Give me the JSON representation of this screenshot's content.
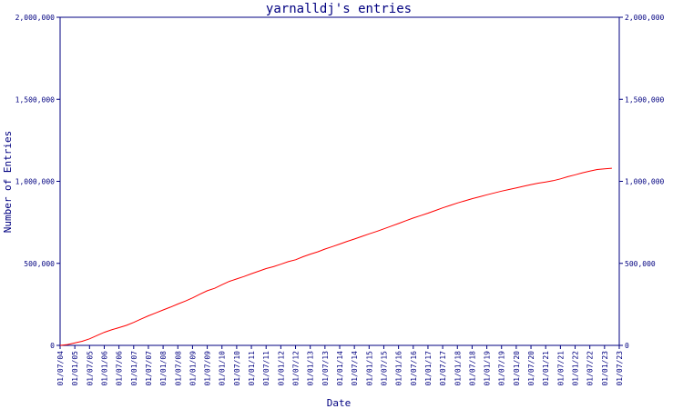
{
  "chart_data": {
    "type": "line",
    "title": "yarnalldj's entries",
    "xlabel": "Date",
    "ylabel": "Number of Entries",
    "ylim": [
      0,
      2000000
    ],
    "y_ticks": [
      "0",
      "500,000",
      "1,000,000",
      "1,500,000",
      "2,000,000"
    ],
    "y_tick_values": [
      0,
      500000,
      1000000,
      1500000,
      2000000
    ],
    "x_tick_labels": [
      "01/07/04",
      "01/01/05",
      "01/07/05",
      "01/01/06",
      "01/07/06",
      "01/01/07",
      "01/07/07",
      "01/01/08",
      "01/07/08",
      "01/01/09",
      "01/07/09",
      "01/01/10",
      "01/07/10",
      "01/01/11",
      "01/07/11",
      "01/01/12",
      "01/07/12",
      "01/01/13",
      "01/07/13",
      "01/01/14",
      "01/07/14",
      "01/01/15",
      "01/07/15",
      "01/01/16",
      "01/07/16",
      "01/01/17",
      "01/07/17",
      "01/01/18",
      "01/07/18",
      "01/01/19",
      "01/07/19",
      "01/01/20",
      "01/07/20",
      "01/01/21",
      "01/07/21",
      "01/01/22",
      "01/07/22",
      "01/01/23",
      "01/07/23"
    ],
    "grid": false,
    "legend": "none",
    "colors": {
      "axis": "#000080",
      "line": "#ff0000",
      "background": "#ffffff"
    },
    "series": [
      {
        "x": [
          "2004-07-01",
          "2004-10-01",
          "2005-01-01",
          "2005-04-01",
          "2005-07-01",
          "2005-10-01",
          "2006-01-01",
          "2006-04-01",
          "2006-07-01",
          "2006-10-01",
          "2007-01-01",
          "2007-04-01",
          "2007-07-01",
          "2007-10-01",
          "2008-01-01",
          "2008-04-01",
          "2008-07-01",
          "2008-10-01",
          "2009-01-01",
          "2009-04-01",
          "2009-07-01",
          "2009-10-01",
          "2010-01-01",
          "2010-04-01",
          "2010-07-01",
          "2010-10-01",
          "2011-01-01",
          "2011-04-01",
          "2011-07-01",
          "2011-10-01",
          "2012-01-01",
          "2012-04-01",
          "2012-07-01",
          "2012-10-01",
          "2013-01-01",
          "2013-04-01",
          "2013-07-01",
          "2013-10-01",
          "2014-01-01",
          "2014-04-01",
          "2014-07-01",
          "2014-10-01",
          "2015-01-01",
          "2015-04-01",
          "2015-07-01",
          "2015-10-01",
          "2016-01-01",
          "2016-04-01",
          "2016-07-01",
          "2016-10-01",
          "2017-01-01",
          "2017-04-01",
          "2017-07-01",
          "2017-10-01",
          "2018-01-01",
          "2018-04-01",
          "2018-07-01",
          "2018-10-01",
          "2019-01-01",
          "2019-04-01",
          "2019-07-01",
          "2019-10-01",
          "2020-01-01",
          "2020-04-01",
          "2020-07-01",
          "2020-10-01",
          "2021-01-01",
          "2021-04-01",
          "2021-07-01",
          "2021-10-01",
          "2022-01-01",
          "2022-04-01",
          "2022-07-01",
          "2022-10-01",
          "2023-01-01",
          "2023-04-01"
        ],
        "values": [
          0,
          5000,
          15000,
          25000,
          40000,
          60000,
          80000,
          95000,
          108000,
          122000,
          140000,
          160000,
          180000,
          198000,
          216000,
          233000,
          252000,
          270000,
          290000,
          312000,
          333000,
          348000,
          370000,
          390000,
          405000,
          420000,
          437000,
          452000,
          468000,
          480000,
          495000,
          510000,
          522000,
          540000,
          556000,
          570000,
          587000,
          602000,
          618000,
          634000,
          648000,
          664000,
          680000,
          694000,
          710000,
          727000,
          743000,
          760000,
          776000,
          791000,
          806000,
          822000,
          838000,
          853000,
          868000,
          881000,
          894000,
          906000,
          918000,
          929000,
          940000,
          950000,
          960000,
          970000,
          980000,
          989000,
          996000,
          1004000,
          1015000,
          1028000,
          1040000,
          1052000,
          1062000,
          1072000,
          1076000,
          1080000
        ]
      }
    ]
  }
}
